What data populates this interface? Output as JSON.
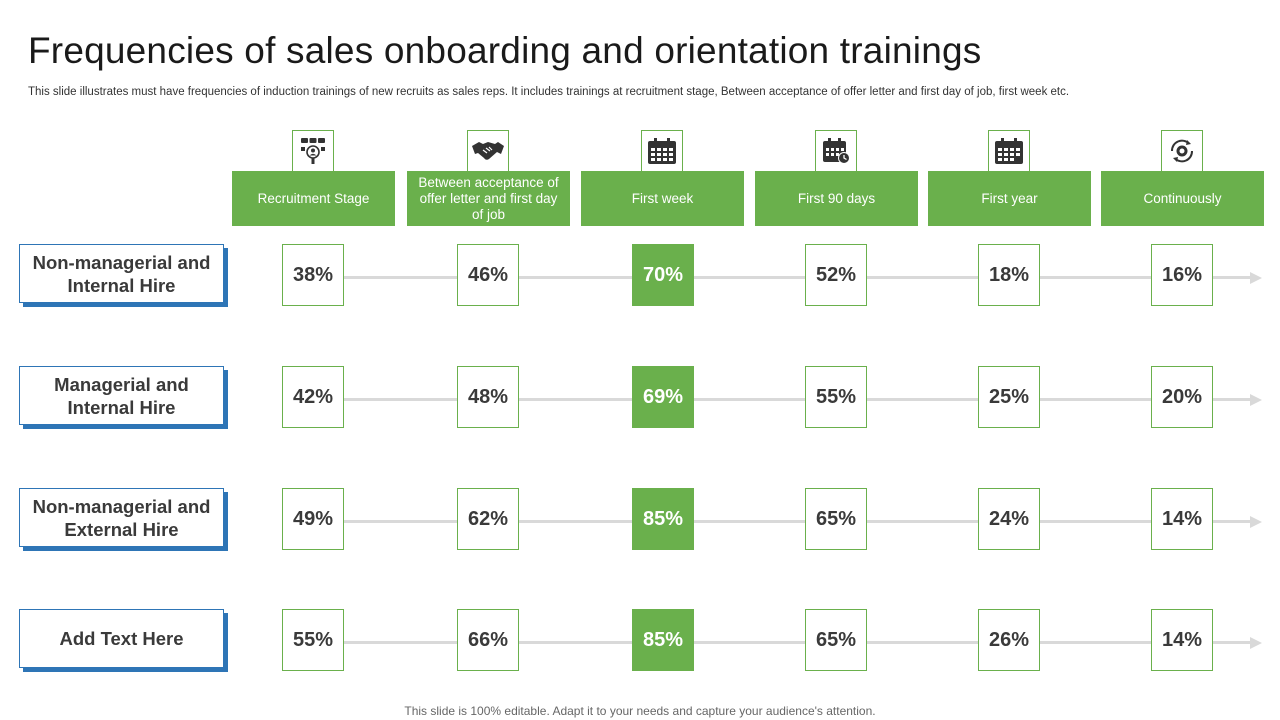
{
  "title": "Frequencies of sales onboarding and orientation trainings",
  "subtitle": "This slide illustrates must have frequencies of induction trainings of new recruits as sales reps. It includes trainings at recruitment stage, Between acceptance of offer letter and first day of job, first week etc.",
  "columns": [
    {
      "label": "Recruitment Stage",
      "icon": "recruitment-people-icon"
    },
    {
      "label": "Between acceptance of offer letter and first day of job",
      "icon": "handshake-icon"
    },
    {
      "label": "First week",
      "icon": "calendar-week-icon"
    },
    {
      "label": "First 90 days",
      "icon": "calendar-clock-icon"
    },
    {
      "label": "First year",
      "icon": "calendar-year-icon"
    },
    {
      "label": "Continuously",
      "icon": "cycle-arrows-icon"
    }
  ],
  "rows": [
    {
      "label": "Non-managerial and Internal Hire",
      "values": [
        "38%",
        "46%",
        "70%",
        "52%",
        "18%",
        "16%"
      ]
    },
    {
      "label": "Managerial and Internal Hire",
      "values": [
        "42%",
        "48%",
        "69%",
        "55%",
        "25%",
        "20%"
      ]
    },
    {
      "label": "Non-managerial and External Hire",
      "values": [
        "49%",
        "62%",
        "85%",
        "65%",
        "24%",
        "14%"
      ]
    },
    {
      "label": "Add Text Here",
      "values": [
        "55%",
        "66%",
        "85%",
        "65%",
        "26%",
        "14%"
      ]
    }
  ],
  "highlight_column": 2,
  "colors": {
    "accent_green": "#6ab04c",
    "label_blue": "#2e75b6",
    "connector_gray": "#d9d9d9"
  },
  "footer": "This slide is 100% editable. Adapt it to your needs and capture your audience's attention."
}
